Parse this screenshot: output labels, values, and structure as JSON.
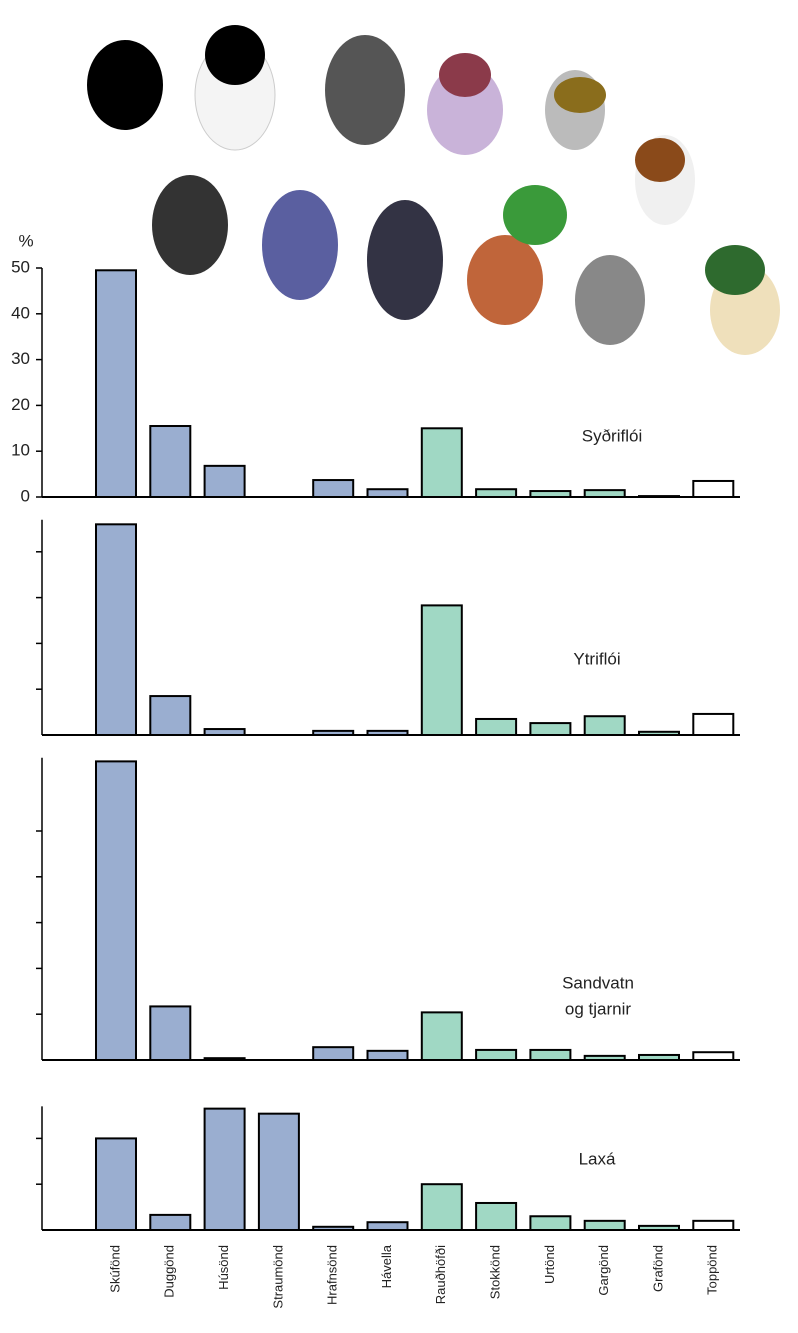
{
  "chart_data": [
    {
      "type": "bar",
      "label": "Syðriflói",
      "ylabel": "%",
      "colors": [
        "#9aaed0",
        "#9aaed0",
        "#9aaed0",
        "#9aaed0",
        "#9aaed0",
        "#9aaed0",
        "#a0d8c4",
        "#a0d8c4",
        "#a0d8c4",
        "#a0d8c4",
        "#a0d8c4",
        "#ffffff"
      ],
      "values": [
        49.5,
        15.5,
        6.8,
        0,
        3.7,
        1.7,
        15,
        1.7,
        1.3,
        1.5,
        0.2,
        3.5
      ],
      "ylim": [
        0,
        50
      ],
      "yticks": [
        0,
        10,
        20,
        30,
        40,
        50
      ]
    },
    {
      "type": "bar",
      "label": "Ytriflói",
      "colors": [
        "#9aaed0",
        "#9aaed0",
        "#9aaed0",
        "#9aaed0",
        "#9aaed0",
        "#9aaed0",
        "#a0d8c4",
        "#a0d8c4",
        "#a0d8c4",
        "#a0d8c4",
        "#a0d8c4",
        "#ffffff"
      ],
      "values": [
        46,
        8.5,
        1.3,
        0,
        0.9,
        0.9,
        28.3,
        3.5,
        2.6,
        4.1,
        0.7,
        4.6
      ],
      "ylim": [
        0,
        47
      ],
      "yticks": [
        10,
        20,
        30,
        40
      ]
    },
    {
      "type": "bar",
      "label": [
        "Sandvatn",
        "og tjarnir"
      ],
      "colors": [
        "#9aaed0",
        "#9aaed0",
        "#9aaed0",
        "#9aaed0",
        "#9aaed0",
        "#9aaed0",
        "#a0d8c4",
        "#a0d8c4",
        "#a0d8c4",
        "#a0d8c4",
        "#a0d8c4",
        "#ffffff"
      ],
      "values": [
        65.2,
        11.7,
        0.4,
        0,
        2.8,
        2,
        10.4,
        2.2,
        2.2,
        0.9,
        1.1,
        1.7
      ],
      "ylim": [
        0,
        66
      ],
      "yticks": [
        10,
        20,
        30,
        40,
        50
      ]
    },
    {
      "type": "bar",
      "label": "Laxá",
      "colors": [
        "#9aaed0",
        "#9aaed0",
        "#9aaed0",
        "#9aaed0",
        "#9aaed0",
        "#9aaed0",
        "#a0d8c4",
        "#a0d8c4",
        "#a0d8c4",
        "#a0d8c4",
        "#a0d8c4",
        "#ffffff"
      ],
      "categories": [
        "Skúfönd",
        "Duggönd",
        "Húsönd",
        "Straumönd",
        "Hrafnsönd",
        "Hávella",
        "Rauðhöfði",
        "Stokkönd",
        "Urtönd",
        "Gargönd",
        "Grafönd",
        "Toppönd"
      ],
      "values": [
        20,
        3.3,
        26.5,
        25.4,
        0.7,
        1.7,
        10,
        5.9,
        3,
        2,
        0.9,
        2
      ],
      "ylim": [
        0,
        27
      ],
      "yticks": [
        10,
        20
      ]
    }
  ]
}
